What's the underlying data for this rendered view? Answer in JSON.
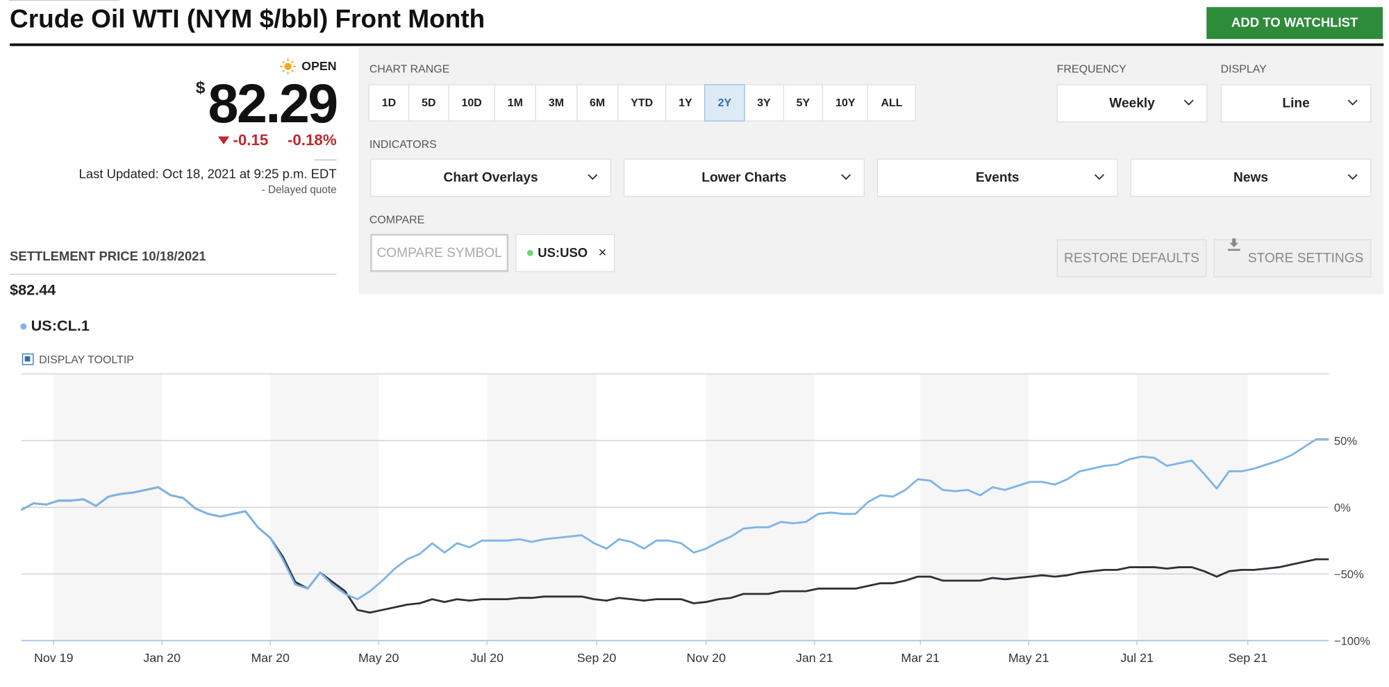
{
  "header": {
    "title": "Crude Oil WTI (NYM $/bbl) Front Month",
    "watchlist_button": "ADD TO WATCHLIST"
  },
  "quote": {
    "status": "OPEN",
    "currency": "$",
    "price": "82.29",
    "change": "-0.15",
    "change_percent": "-0.18%",
    "last_updated": "Last Updated: Oct 18, 2021 at 9:25 p.m. EDT",
    "delay_note": "-  Delayed quote"
  },
  "settlement": {
    "label": "SETTLEMENT PRICE 10/18/2021",
    "value": "$82.44"
  },
  "controls": {
    "chart_range_label": "CHART RANGE",
    "ranges": [
      "1D",
      "5D",
      "10D",
      "1M",
      "3M",
      "6M",
      "YTD",
      "1Y",
      "2Y",
      "3Y",
      "5Y",
      "10Y",
      "ALL"
    ],
    "active_range": "2Y",
    "frequency_label": "FREQUENCY",
    "frequency": "Weekly",
    "display_label": "DISPLAY",
    "display": "Line",
    "indicators_label": "INDICATORS",
    "indicators": [
      "Chart Overlays",
      "Lower Charts",
      "Events",
      "News"
    ],
    "compare_label": "COMPARE",
    "compare_placeholder": "COMPARE SYMBOL",
    "restore_button": "RESTORE DEFAULTS",
    "store_button": "STORE SETTINGS",
    "tooltip_label": "DISPLAY TOOLTIP"
  },
  "chart_data": {
    "type": "line",
    "xlim": [
      0,
      105
    ],
    "xticks": [
      {
        "value": 2.6,
        "label": "Nov 19"
      },
      {
        "value": 11.3,
        "label": "Jan 20"
      },
      {
        "value": 20,
        "label": "Mar 20"
      },
      {
        "value": 28.7,
        "label": "May 20"
      },
      {
        "value": 37.4,
        "label": "Jul 20"
      },
      {
        "value": 46.2,
        "label": "Sep 20"
      },
      {
        "value": 55,
        "label": "Nov 20"
      },
      {
        "value": 63.7,
        "label": "Jan 21"
      },
      {
        "value": 72.2,
        "label": "Mar 21"
      },
      {
        "value": 80.9,
        "label": "May 21"
      },
      {
        "value": 89.6,
        "label": "Jul 21"
      },
      {
        "value": 98.5,
        "label": "Sep 21"
      }
    ],
    "ylim": [
      -100,
      100
    ],
    "yticks": [
      {
        "value": -100,
        "label": "−100%"
      },
      {
        "value": -50,
        "label": "−50%"
      },
      {
        "value": 0,
        "label": "0%"
      },
      {
        "value": 50,
        "label": "50%"
      }
    ],
    "grid": true,
    "series": [
      {
        "name": "US:CL.1",
        "color": "#7db4e6",
        "values": [
          -2,
          3,
          2,
          5,
          5,
          6,
          1,
          8,
          10,
          11,
          13,
          15,
          9,
          7,
          -1,
          -5,
          -7,
          -5,
          -3,
          -15,
          -23,
          -39,
          -58,
          -61,
          -49,
          -58,
          -65,
          -69,
          -63,
          -55,
          -46,
          -39,
          -35,
          -27,
          -34,
          -27,
          -30,
          -25,
          -25,
          -25,
          -24,
          -26,
          -24,
          -23,
          -22,
          -21,
          -27,
          -31,
          -24,
          -26,
          -31,
          -25,
          -25,
          -27,
          -34,
          -31,
          -26,
          -22,
          -16,
          -15,
          -15,
          -11,
          -12,
          -11,
          -5,
          -4,
          -5,
          -5,
          4,
          9,
          8,
          13,
          21,
          20,
          13,
          12,
          13,
          9,
          15,
          13,
          16,
          19,
          19,
          17,
          21,
          27,
          29,
          31,
          32,
          36,
          38,
          37,
          31,
          33,
          35,
          25,
          14,
          27,
          27,
          29,
          32,
          35,
          39,
          45,
          51,
          51
        ]
      },
      {
        "name": "US:USO",
        "color": "#2b323a",
        "values": [
          -2,
          3,
          2,
          5,
          5,
          6,
          1,
          8,
          10,
          11,
          13,
          15,
          9,
          7,
          -1,
          -5,
          -7,
          -5,
          -3,
          -15,
          -23,
          -37,
          -56,
          -61,
          -49,
          -56,
          -63,
          -77,
          -79,
          -77,
          -75,
          -73,
          -72,
          -69,
          -71,
          -69,
          -70,
          -69,
          -69,
          -69,
          -68,
          -68,
          -67,
          -67,
          -67,
          -67,
          -69,
          -70,
          -68,
          -69,
          -70,
          -69,
          -69,
          -69,
          -72,
          -71,
          -69,
          -68,
          -65,
          -65,
          -65,
          -63,
          -63,
          -63,
          -61,
          -61,
          -61,
          -61,
          -59,
          -57,
          -57,
          -55,
          -52,
          -52,
          -55,
          -55,
          -55,
          -55,
          -53,
          -54,
          -53,
          -52,
          -51,
          -52,
          -51,
          -49,
          -48,
          -47,
          -47,
          -45,
          -45,
          -45,
          -46,
          -45,
          -45,
          -48,
          -52,
          -48,
          -47,
          -47,
          -46,
          -45,
          -43,
          -41,
          -39,
          -39
        ]
      }
    ]
  }
}
